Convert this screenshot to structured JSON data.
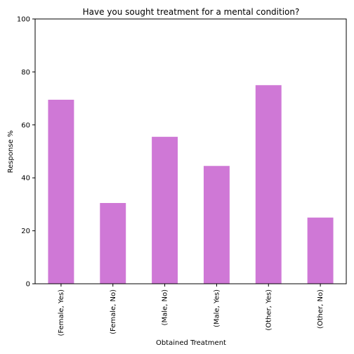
{
  "chart_data": {
    "type": "bar",
    "title": "Have you sought treatment for a mental condition?",
    "xlabel": "Obtained Treatment",
    "ylabel": "Response %",
    "categories": [
      "(Female, Yes)",
      "(Female, No)",
      "(Male, No)",
      "(Male, Yes)",
      "(Other, Yes)",
      "(Other, No)"
    ],
    "values": [
      69.5,
      30.5,
      55.5,
      44.5,
      75.0,
      25.0
    ],
    "ylim": [
      0,
      100
    ],
    "yticks": [
      "0",
      "20",
      "40",
      "60",
      "80",
      "100"
    ],
    "bar_color": "#cf78d6",
    "grid": false,
    "legend": "none"
  }
}
